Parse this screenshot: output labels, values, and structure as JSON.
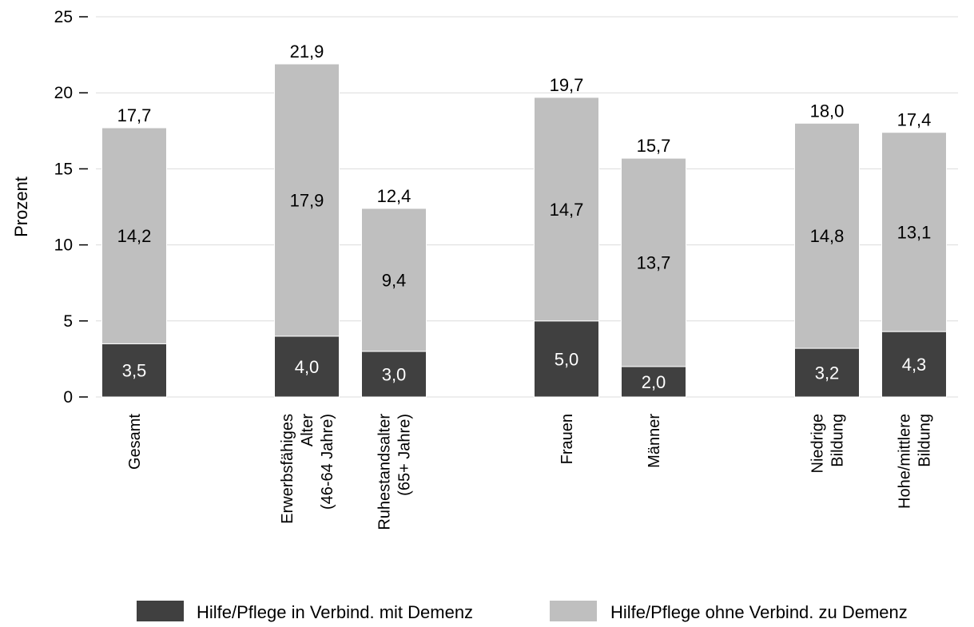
{
  "chart_data": {
    "type": "bar",
    "stacked": true,
    "title": "",
    "xlabel": "",
    "ylabel": "Prozent",
    "ylim": [
      0,
      25
    ],
    "yticks": [
      "0",
      "5",
      "10",
      "15",
      "20",
      "25"
    ],
    "grid": true,
    "legend_position": "bottom",
    "categories": [
      {
        "lines": [
          "Gesamt"
        ],
        "group": 0
      },
      {
        "lines": [
          "Erwerbsfähiges",
          "Alter",
          "(46-64 Jahre)"
        ],
        "group": 1
      },
      {
        "lines": [
          "Ruhestandsalter",
          "(65+ Jahre)"
        ],
        "group": 1
      },
      {
        "lines": [
          "Frauen"
        ],
        "group": 2
      },
      {
        "lines": [
          "Männer"
        ],
        "group": 2
      },
      {
        "lines": [
          "Niedrige",
          "Bildung"
        ],
        "group": 3
      },
      {
        "lines": [
          "Hohe/mittlere",
          "Bildung"
        ],
        "group": 3
      }
    ],
    "series": [
      {
        "name": "Hilfe/Pflege in Verbind. mit Demenz",
        "color": "#404040",
        "label_color": "#ffffff",
        "values": [
          3.5,
          4.0,
          3.0,
          5.0,
          2.0,
          3.2,
          4.3
        ],
        "labels": [
          "3,5",
          "4,0",
          "3,0",
          "5,0",
          "2,0",
          "3,2",
          "4,3"
        ]
      },
      {
        "name": "Hilfe/Pflege ohne Verbind. zu Demenz",
        "color": "#bfbfbf",
        "label_color": "#000000",
        "values": [
          14.2,
          17.9,
          9.4,
          14.7,
          13.7,
          14.8,
          13.1
        ],
        "labels": [
          "14,2",
          "17,9",
          "9,4",
          "14,7",
          "13,7",
          "14,8",
          "13,1"
        ]
      }
    ],
    "totals": [
      17.7,
      21.9,
      12.4,
      19.7,
      15.7,
      18.0,
      17.4
    ],
    "total_labels": [
      "17,7",
      "21,9",
      "12,4",
      "19,7",
      "15,7",
      "18,0",
      "17,4"
    ]
  }
}
